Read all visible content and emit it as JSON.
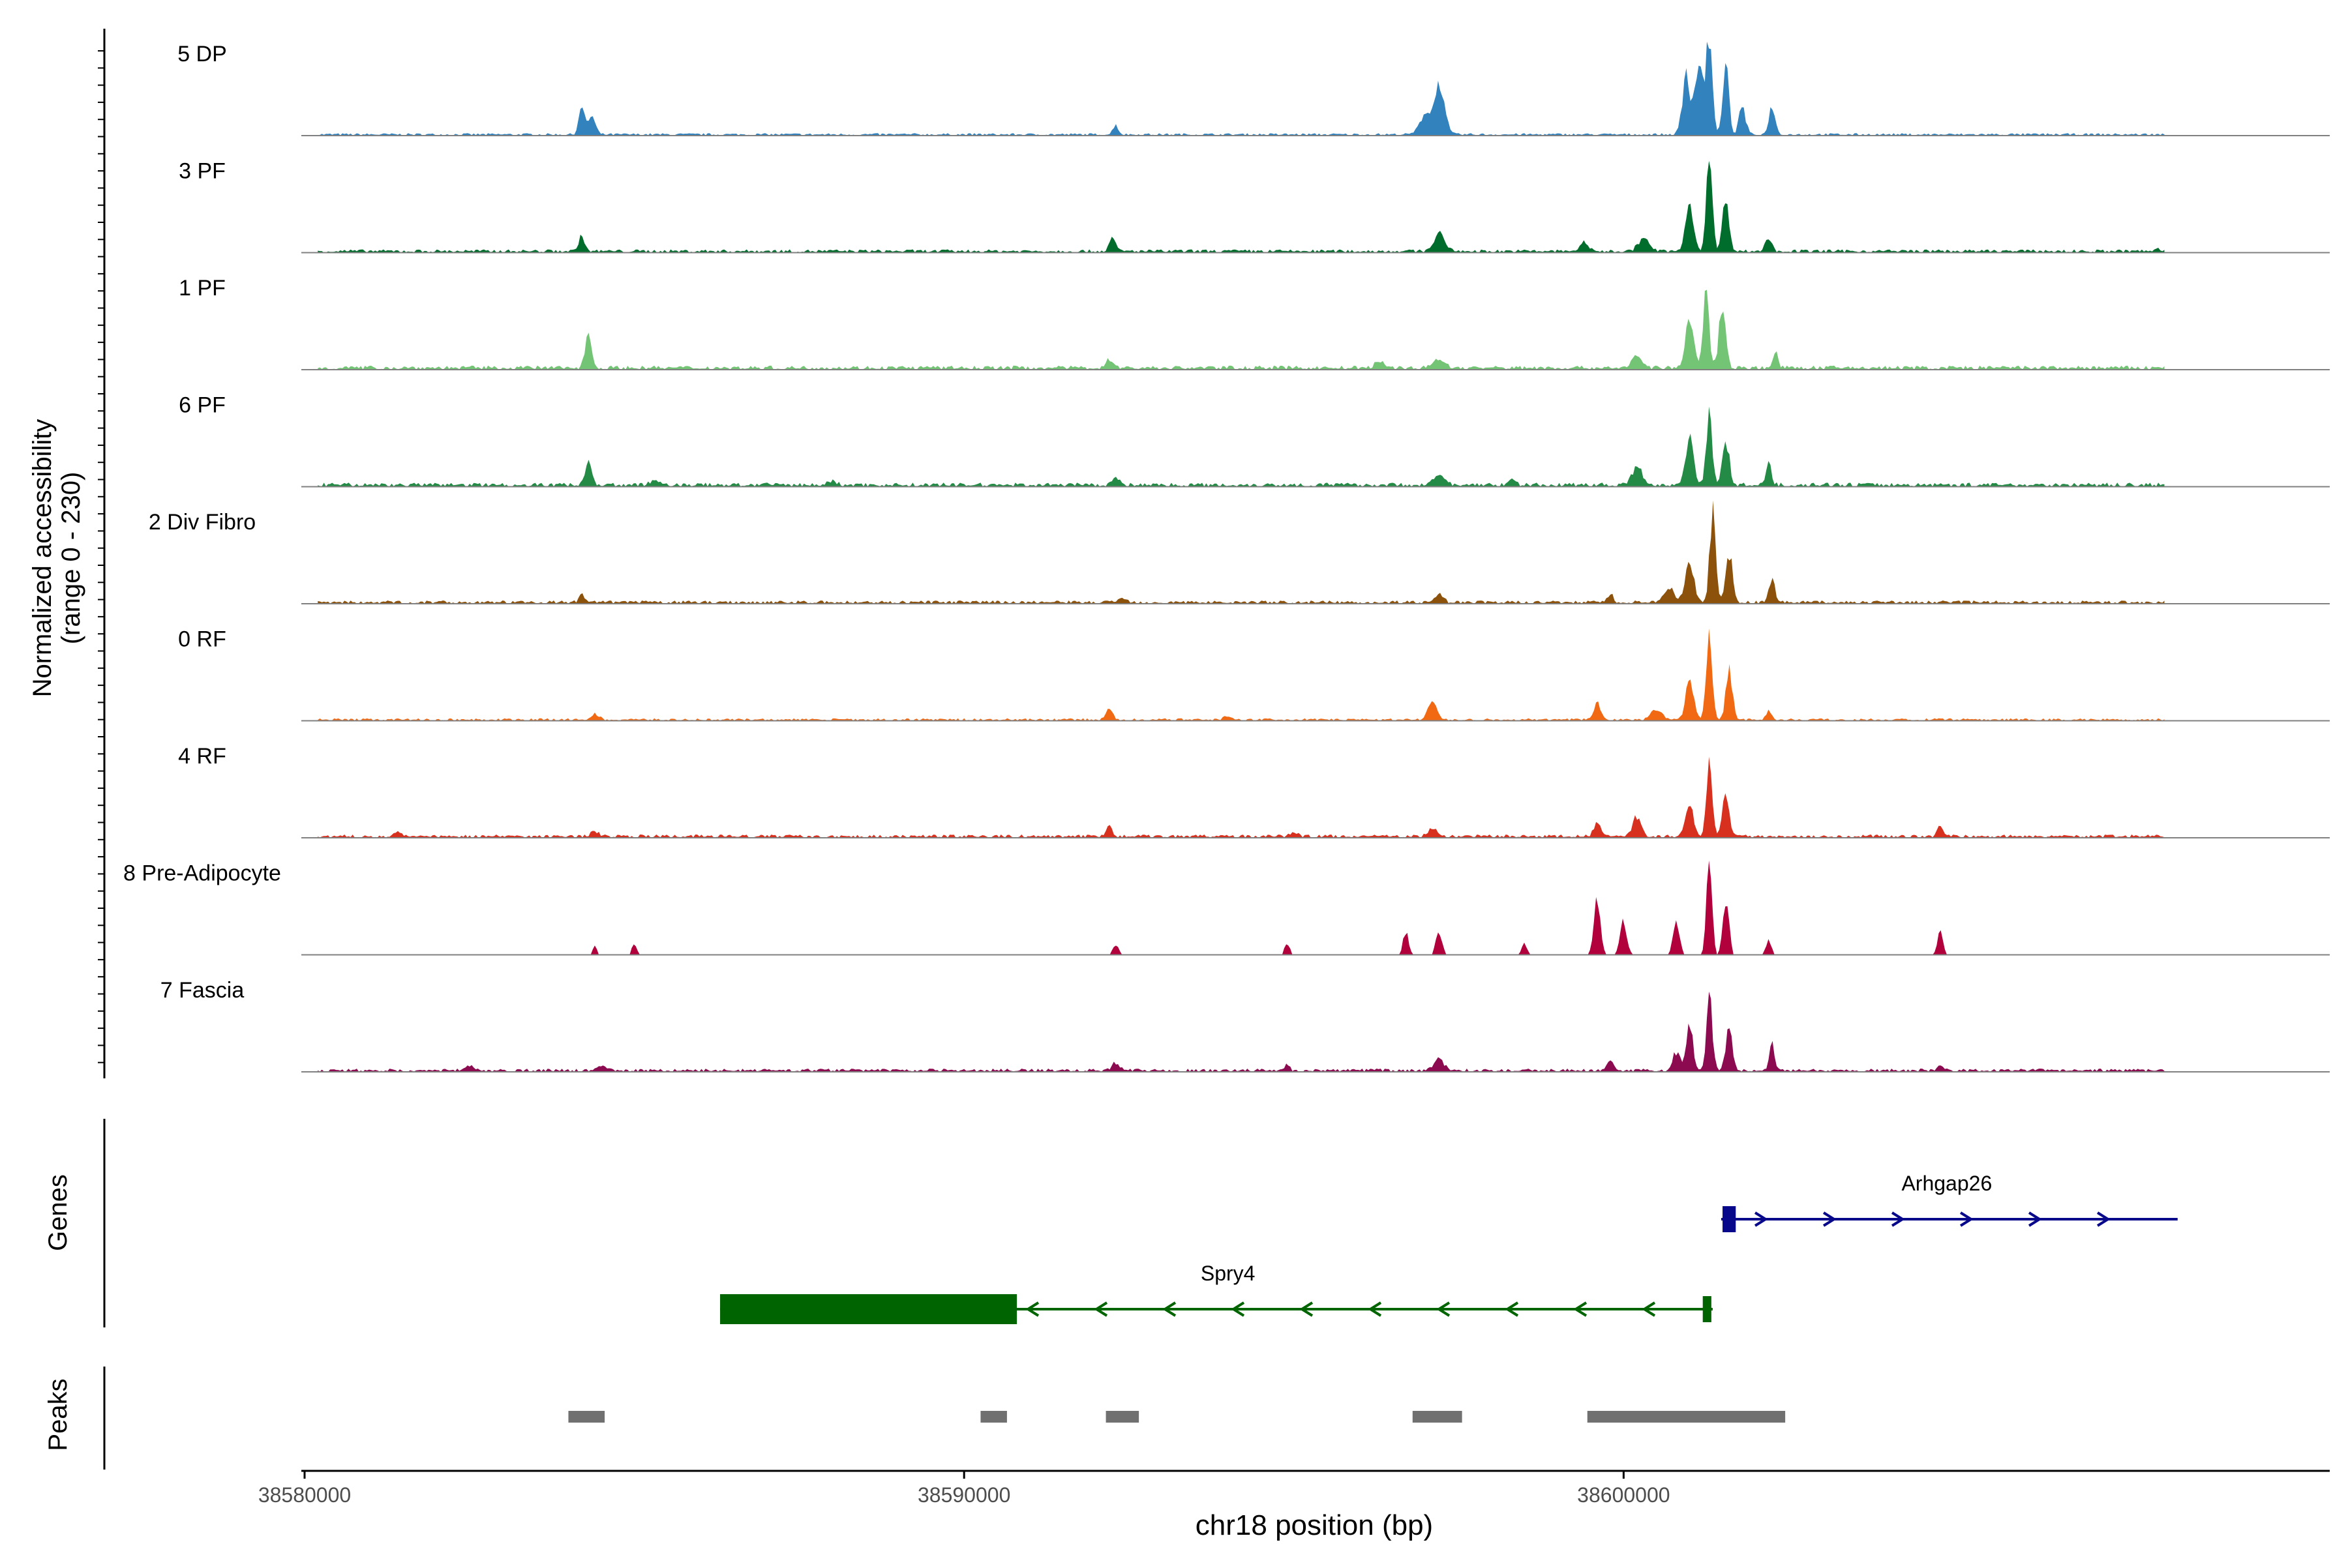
{
  "chart_data": {
    "type": "area",
    "region": {
      "chrom": "chr18",
      "start": 38580000,
      "end": 38609500
    },
    "ylabel": [
      "Normalized accessibility",
      "(range 0 - 230)"
    ],
    "yrange": [
      0,
      230
    ],
    "xlabel": "chr18 position (bp)",
    "xticks": [
      38580000,
      38590000,
      38600000
    ],
    "tracks": [
      {
        "name": "5 DP",
        "color": "#3182bd",
        "baseline": 3,
        "noise": 0.9,
        "peaks": [
          [
            38584200,
            55,
            45
          ],
          [
            38584350,
            40,
            55
          ],
          [
            38592300,
            22,
            40
          ],
          [
            38597200,
            110,
            80
          ],
          [
            38597000,
            40,
            90
          ],
          [
            38600950,
            130,
            60
          ],
          [
            38601300,
            215,
            45
          ],
          [
            38601150,
            170,
            60
          ],
          [
            38601550,
            150,
            45
          ],
          [
            38602250,
            70,
            45
          ],
          [
            38601800,
            60,
            50
          ]
        ]
      },
      {
        "name": "3 PF",
        "color": "#006d2c",
        "baseline": 4,
        "noise": 0.9,
        "peaks": [
          [
            38584200,
            35,
            45
          ],
          [
            38592250,
            28,
            50
          ],
          [
            38597200,
            40,
            80
          ],
          [
            38599400,
            20,
            60
          ],
          [
            38601000,
            110,
            60
          ],
          [
            38601300,
            205,
            45
          ],
          [
            38601550,
            120,
            50
          ],
          [
            38600300,
            30,
            80
          ],
          [
            38602200,
            35,
            45
          ],
          [
            38608100,
            8,
            30
          ]
        ]
      },
      {
        "name": "1 PF",
        "color": "#74c476",
        "baseline": 5,
        "noise": 0.9,
        "peaks": [
          [
            38584300,
            75,
            50
          ],
          [
            38592200,
            18,
            60
          ],
          [
            38597200,
            22,
            80
          ],
          [
            38596300,
            12,
            80
          ],
          [
            38601000,
            110,
            60
          ],
          [
            38601250,
            190,
            45
          ],
          [
            38601500,
            150,
            50
          ],
          [
            38602300,
            35,
            40
          ],
          [
            38600200,
            25,
            80
          ]
        ]
      },
      {
        "name": "6 PF",
        "color": "#238b45",
        "baseline": 5,
        "noise": 0.9,
        "peaks": [
          [
            38584300,
            55,
            50
          ],
          [
            38585300,
            10,
            60
          ],
          [
            38592300,
            18,
            50
          ],
          [
            38597200,
            22,
            80
          ],
          [
            38600200,
            40,
            80
          ],
          [
            38601000,
            110,
            60
          ],
          [
            38601300,
            165,
            45
          ],
          [
            38601550,
            100,
            50
          ],
          [
            38602200,
            50,
            40
          ],
          [
            38598300,
            10,
            60
          ],
          [
            38588000,
            8,
            60
          ]
        ]
      },
      {
        "name": "2 Div Fibro",
        "color": "#8c510a",
        "baseline": 4,
        "noise": 0.9,
        "peaks": [
          [
            38584200,
            18,
            40
          ],
          [
            38597200,
            22,
            60
          ],
          [
            38599800,
            20,
            40
          ],
          [
            38601000,
            100,
            60
          ],
          [
            38601350,
            205,
            45
          ],
          [
            38601600,
            110,
            50
          ],
          [
            38602250,
            60,
            40
          ],
          [
            38592400,
            10,
            60
          ],
          [
            38600700,
            30,
            80
          ]
        ]
      },
      {
        "name": "0 RF",
        "color": "#f16913",
        "baseline": 3,
        "noise": 0.9,
        "peaks": [
          [
            38584400,
            12,
            60
          ],
          [
            38592200,
            22,
            50
          ],
          [
            38597100,
            40,
            70
          ],
          [
            38599600,
            40,
            50
          ],
          [
            38601000,
            90,
            60
          ],
          [
            38601300,
            200,
            45
          ],
          [
            38601600,
            110,
            50
          ],
          [
            38600500,
            25,
            80
          ],
          [
            38602200,
            20,
            40
          ],
          [
            38594000,
            8,
            60
          ]
        ]
      },
      {
        "name": "4 RF",
        "color": "#d7301f",
        "baseline": 4,
        "noise": 0.9,
        "peaks": [
          [
            38584400,
            12,
            60
          ],
          [
            38592200,
            20,
            50
          ],
          [
            38595000,
            10,
            60
          ],
          [
            38597100,
            20,
            60
          ],
          [
            38599600,
            35,
            50
          ],
          [
            38600200,
            45,
            60
          ],
          [
            38601000,
            80,
            60
          ],
          [
            38601300,
            175,
            45
          ],
          [
            38601550,
            100,
            50
          ],
          [
            38604800,
            25,
            40
          ],
          [
            38581400,
            10,
            50
          ]
        ]
      },
      {
        "name": "8 Pre-Adipocyte",
        "color": "#b1003b",
        "baseline": 0,
        "noise": 1.6,
        "sparse": true,
        "peaks": [
          [
            38584400,
            18,
            40
          ],
          [
            38585000,
            22,
            40
          ],
          [
            38599600,
            120,
            50
          ],
          [
            38600000,
            75,
            50
          ],
          [
            38601300,
            230,
            40
          ],
          [
            38601550,
            130,
            45
          ],
          [
            38600800,
            70,
            50
          ],
          [
            38597200,
            45,
            50
          ],
          [
            38596700,
            55,
            40
          ],
          [
            38604800,
            55,
            40
          ],
          [
            38598500,
            25,
            40
          ],
          [
            38592300,
            22,
            50
          ],
          [
            38594900,
            25,
            40
          ],
          [
            38602200,
            35,
            40
          ]
        ]
      },
      {
        "name": "7 Fascia",
        "color": "#8b0a50",
        "baseline": 4,
        "noise": 0.9,
        "peaks": [
          [
            38582500,
            10,
            50
          ],
          [
            38584500,
            10,
            60
          ],
          [
            38592300,
            18,
            60
          ],
          [
            38594900,
            12,
            40
          ],
          [
            38597200,
            28,
            70
          ],
          [
            38599800,
            20,
            60
          ],
          [
            38600800,
            40,
            60
          ],
          [
            38601000,
            100,
            50
          ],
          [
            38601300,
            165,
            45
          ],
          [
            38601600,
            90,
            50
          ],
          [
            38602250,
            60,
            40
          ],
          [
            38604800,
            10,
            40
          ]
        ]
      }
    ],
    "genes_label": "Genes",
    "genes": [
      {
        "name": "Arhgap26",
        "strand": "+",
        "color": "#08088a",
        "start": 38601480,
        "end": 38608400,
        "exons": [
          [
            38601500,
            38601700
          ]
        ]
      },
      {
        "name": "Spry4",
        "strand": "-",
        "color": "#006400",
        "start": 38586300,
        "end": 38601350,
        "exons": [
          [
            38586300,
            38590800
          ],
          [
            38601200,
            38601330
          ]
        ]
      }
    ],
    "peaks_label": "Peaks",
    "peak_color": "#707070",
    "peak_regions": [
      [
        38584000,
        38584550
      ],
      [
        38590250,
        38590650
      ],
      [
        38592150,
        38592650
      ],
      [
        38596800,
        38597550
      ],
      [
        38599450,
        38602450
      ]
    ]
  }
}
